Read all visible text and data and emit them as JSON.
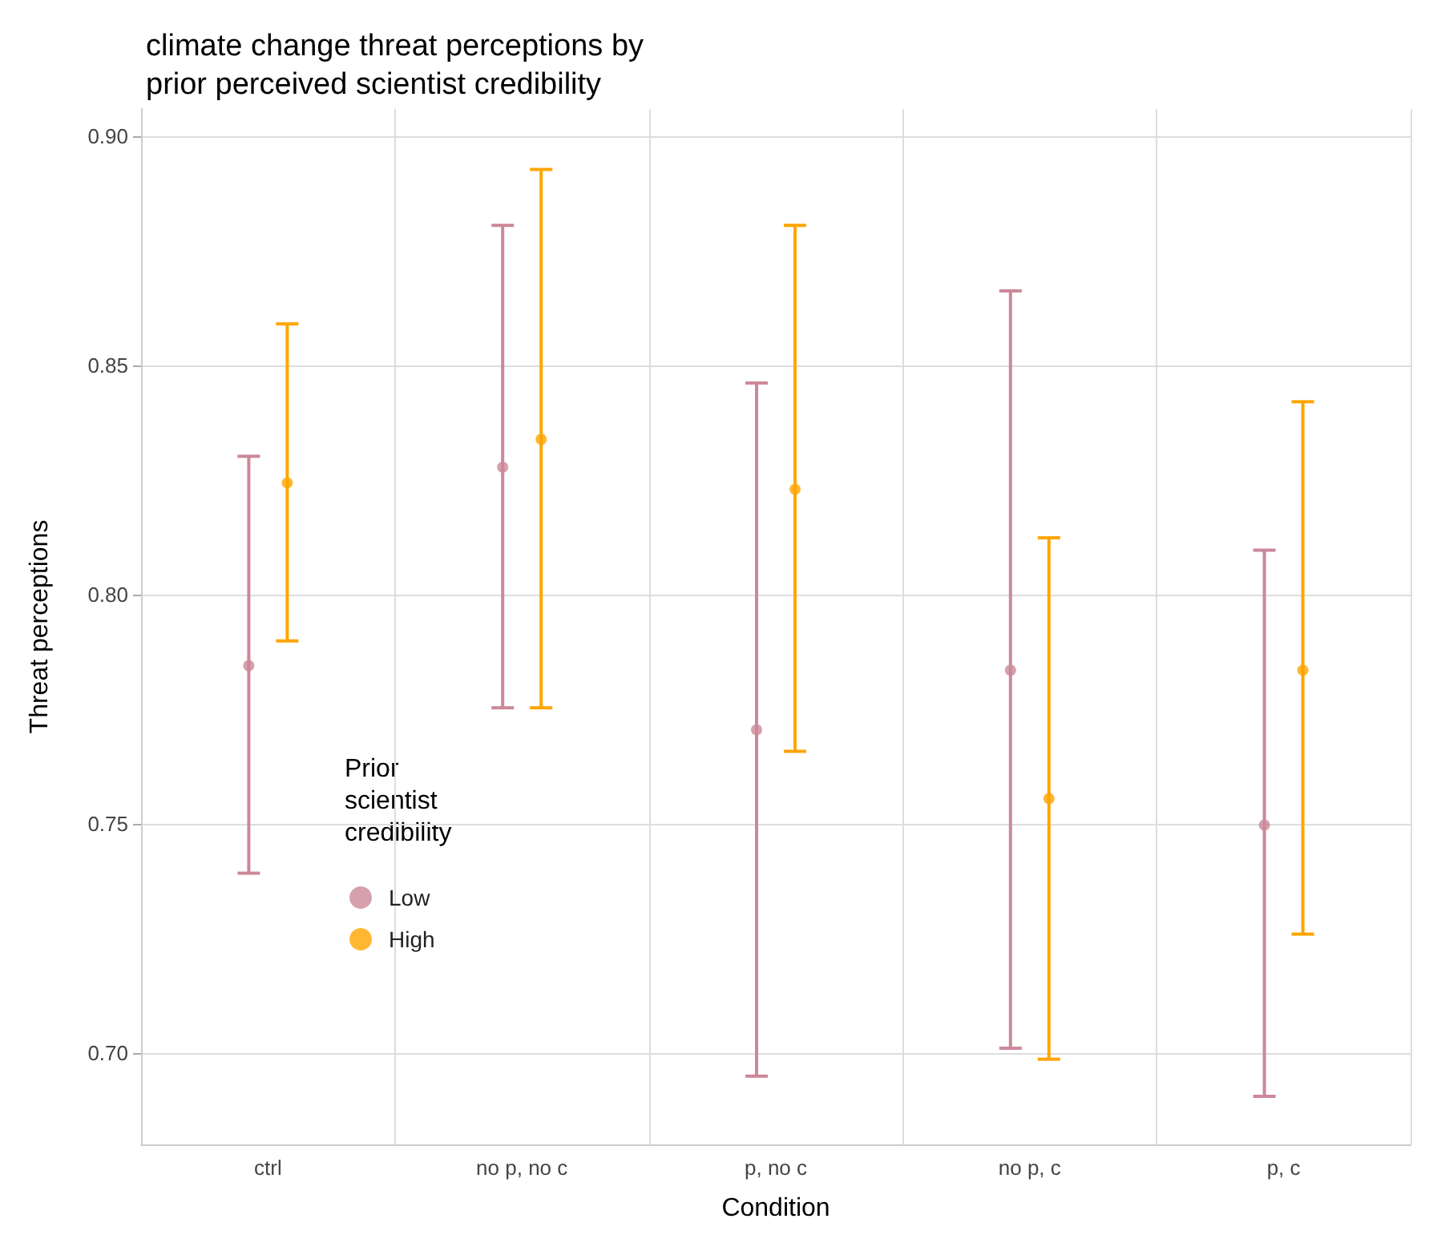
{
  "chart_data": {
    "type": "scatter",
    "title": "climate change threat perceptions by\nprior perceived scientist credibility",
    "xlabel": "Condition",
    "ylabel": "Threat perceptions",
    "legend_title": "Prior\nscientist\ncredibility",
    "categories": [
      "ctrl",
      "no p, no c",
      "p, no c",
      "no p, c",
      "p, c"
    ],
    "series": [
      {
        "name": "Low",
        "color": "#cc8899",
        "values": [
          0.7845,
          0.8278,
          0.7705,
          0.7835,
          0.7497
        ],
        "errors": [
          [
            0.7392,
            0.8302
          ],
          [
            0.7753,
            0.8806
          ],
          [
            0.6949,
            0.8462
          ],
          [
            0.701,
            0.8663
          ],
          [
            0.6905,
            0.8097
          ]
        ]
      },
      {
        "name": "High",
        "color": "#ffa500",
        "values": [
          0.8244,
          0.8339,
          0.823,
          0.7555,
          0.7835
        ],
        "errors": [
          [
            0.7899,
            0.8591
          ],
          [
            0.7753,
            0.8928
          ],
          [
            0.7658,
            0.8806
          ],
          [
            0.6986,
            0.8124
          ],
          [
            0.7259,
            0.8421
          ]
        ]
      }
    ],
    "ylim": [
      0.68,
      0.906
    ],
    "yticks": [
      {
        "value": 0.7,
        "label": "0.70"
      },
      {
        "value": 0.75,
        "label": "0.75"
      },
      {
        "value": 0.8,
        "label": "0.80"
      },
      {
        "value": 0.85,
        "label": "0.85"
      },
      {
        "value": 0.9,
        "label": "0.90"
      }
    ],
    "grid": true,
    "legend": "left",
    "marker": "circle"
  }
}
